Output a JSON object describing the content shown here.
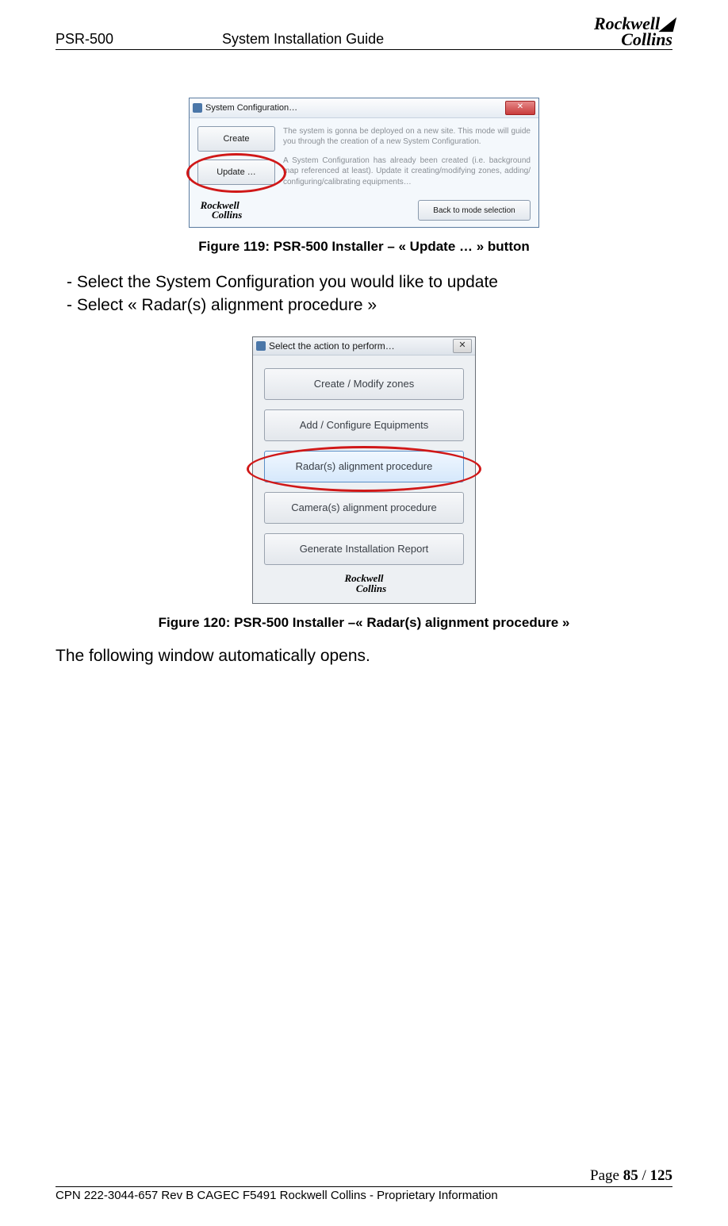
{
  "header": {
    "left": "PSR-500",
    "center": "System Installation Guide",
    "logo_top": "Rockwell",
    "logo_bottom": "Collins"
  },
  "dialog1": {
    "title": "System Configuration…",
    "close_label": "✕",
    "create_label": "Create",
    "update_label": "Update …",
    "desc_create": "The system is gonna be deployed on a new site. This mode will guide you through the creation of a new System Configuration.",
    "desc_update": "A System Configuration has already been created (i.e. background map referenced at least). Update it creating/modifying zones, adding/ configuring/calibrating equipments…",
    "back_label": "Back to mode selection",
    "logo_top": "Rockwell",
    "logo_bottom": "Collins"
  },
  "caption1": "Figure 119: PSR-500 Installer – « Update … » button",
  "bullets": [
    "Select the System Configuration you would like to update",
    "Select « Radar(s) alignment procedure »"
  ],
  "dialog2": {
    "title": "Select the action to perform…",
    "close_label": "✕",
    "buttons": [
      "Create / Modify zones",
      "Add / Configure Equipments",
      "Radar(s) alignment procedure",
      "Camera(s) alignment procedure",
      "Generate Installation Report"
    ],
    "highlight_index": 2,
    "logo_top": "Rockwell",
    "logo_bottom": "Collins"
  },
  "caption2": "Figure 120: PSR-500 Installer –« Radar(s) alignment procedure »",
  "body_after": "The following window automatically opens.",
  "footer": {
    "page_label": "Page ",
    "page_current": "85",
    "page_sep": " / ",
    "page_total": "125",
    "line": "CPN 222-3044-657 Rev B CAGEC F5491 Rockwell Collins - Proprietary Information"
  }
}
